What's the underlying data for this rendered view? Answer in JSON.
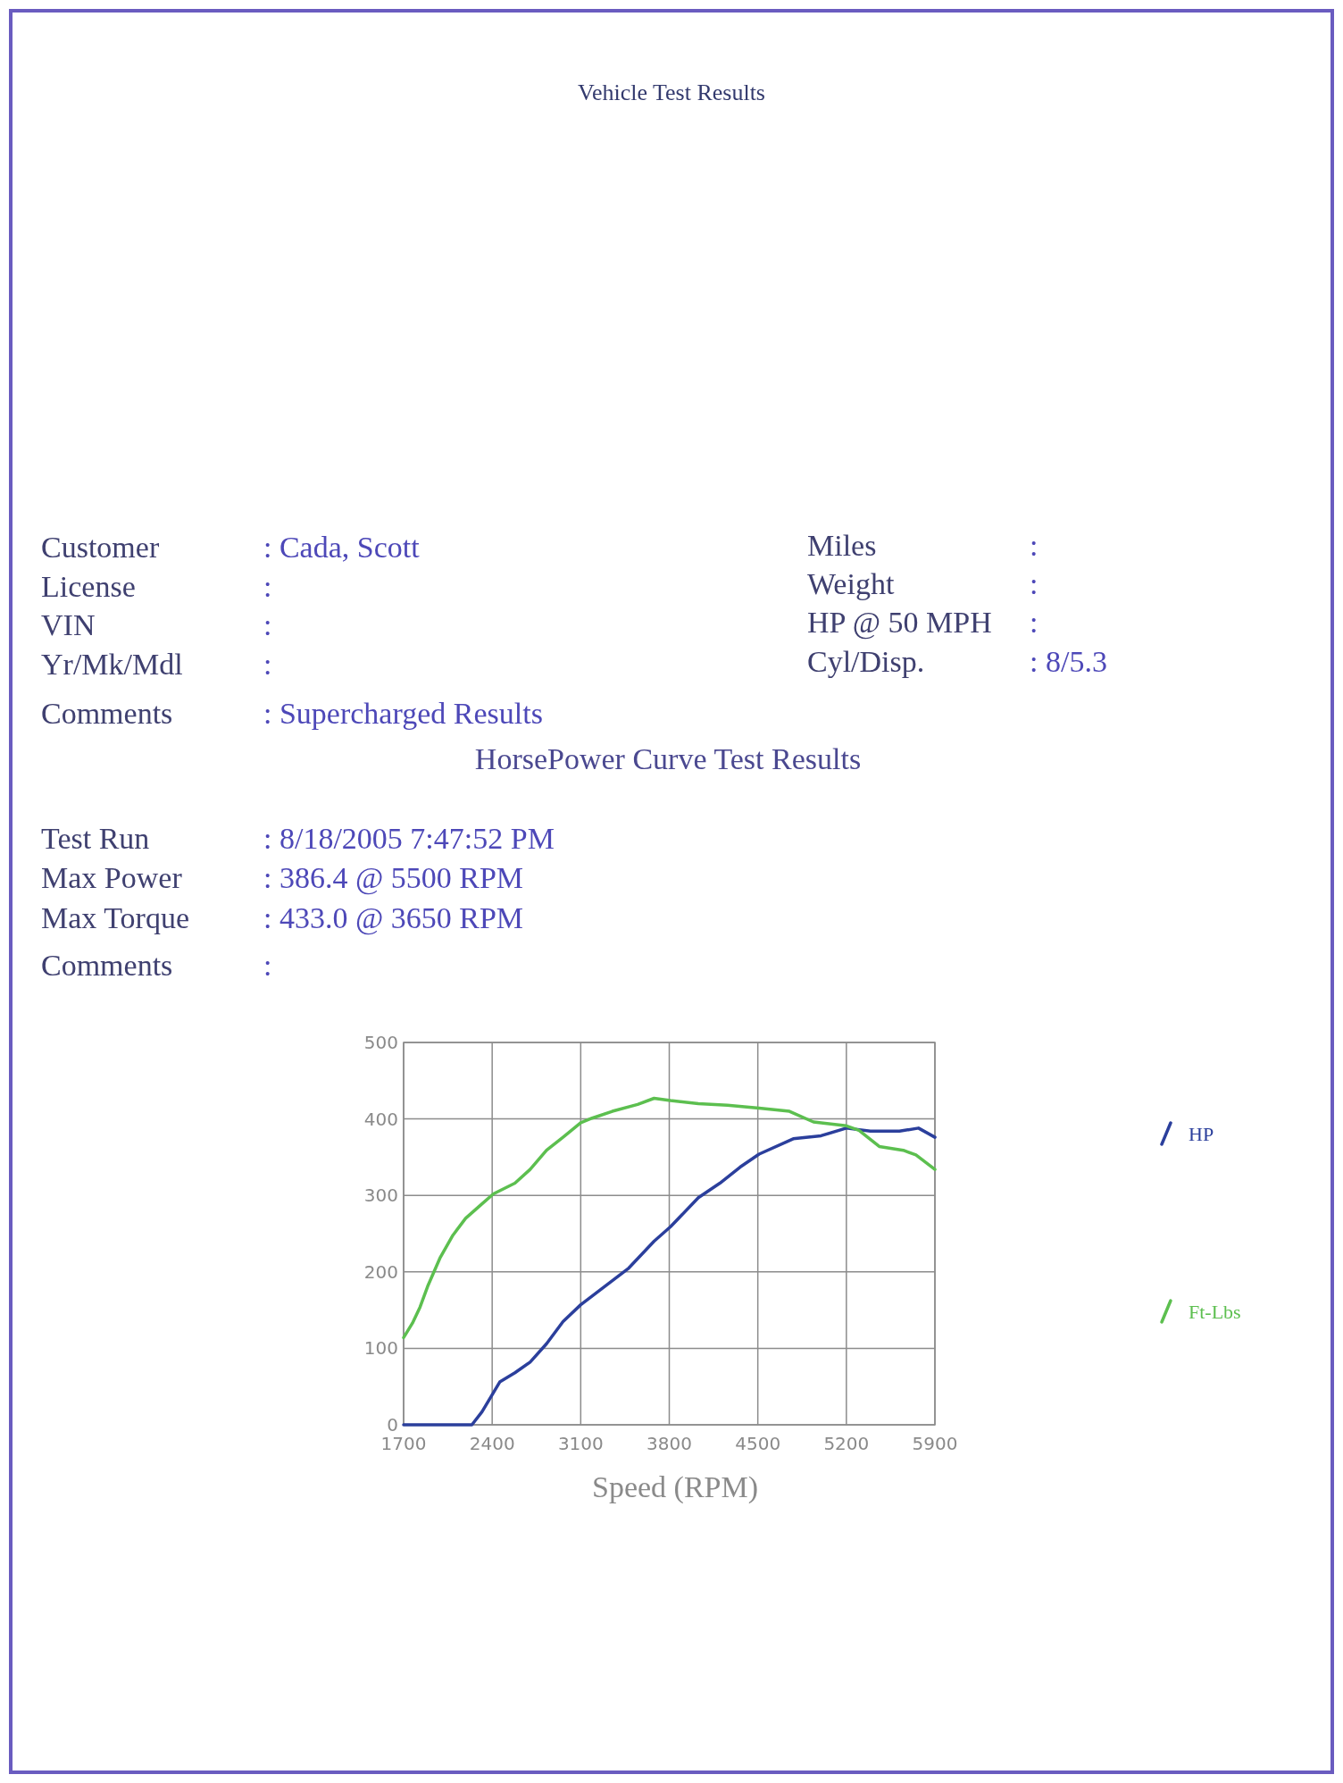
{
  "chart_data": {
    "type": "line",
    "title": "HorsePower Curve Test Results",
    "subtitle": "Vehicle Test Results",
    "xlabel": "Speed (RPM)",
    "xlim": [
      1700,
      5900
    ],
    "xticks": [
      1700,
      2400,
      3100,
      3800,
      4500,
      5200,
      5900
    ],
    "ylim": [
      0,
      500
    ],
    "yticks": [
      0,
      100,
      200,
      300,
      400,
      500
    ],
    "grid": true,
    "legend": "right",
    "marker": "none",
    "line_style": "solid",
    "series": [
      {
        "name": "HP",
        "color": "#2b3f9c",
        "x": [
          1700,
          2240,
          2320,
          2460,
          2580,
          2700,
          2830,
          2960,
          3100,
          3290,
          3480,
          3680,
          3810,
          4030,
          4200,
          4360,
          4510,
          4780,
          5000,
          5200,
          5390,
          5620,
          5770,
          5900
        ],
        "values": [
          0,
          0,
          17,
          56,
          68,
          82,
          106,
          135,
          157,
          181,
          205,
          240,
          259,
          297,
          316,
          337,
          354,
          374,
          378,
          388,
          384,
          384,
          388,
          376
        ]
      },
      {
        "name": "Ft-Lbs",
        "color": "#5cbf4f",
        "x": [
          1700,
          1770,
          1830,
          1890,
          1990,
          2090,
          2190,
          2320,
          2410,
          2580,
          2700,
          2830,
          2960,
          3100,
          3190,
          3350,
          3550,
          3680,
          3810,
          4030,
          4260,
          4510,
          4750,
          4940,
          5200,
          5300,
          5460,
          5650,
          5750,
          5900
        ],
        "values": [
          114,
          133,
          154,
          181,
          219,
          248,
          270,
          289,
          302,
          316,
          334,
          359,
          376,
          395,
          401,
          410,
          419,
          427,
          424,
          420,
          418,
          414,
          410,
          396,
          391,
          385,
          364,
          359,
          353,
          334
        ]
      }
    ],
    "annotations": [
      "Customer",
      ": Cada, Scott",
      "License",
      ":",
      "VIN",
      ":",
      "Yr/Mk/Mdl",
      ":",
      "Comments",
      ": Supercharged Results",
      "Miles",
      ":",
      "Weight",
      ":",
      "HP @ 50 MPH",
      ":",
      "Cyl/Disp.",
      ": 8/5.3",
      "Test Run",
      ": 8/18/2005 7:47:52 PM",
      "Max Power",
      ": 386.4 @ 5500 RPM",
      "Max Torque",
      ": 433.0 @ 3650 RPM",
      "Comments",
      ":"
    ]
  }
}
